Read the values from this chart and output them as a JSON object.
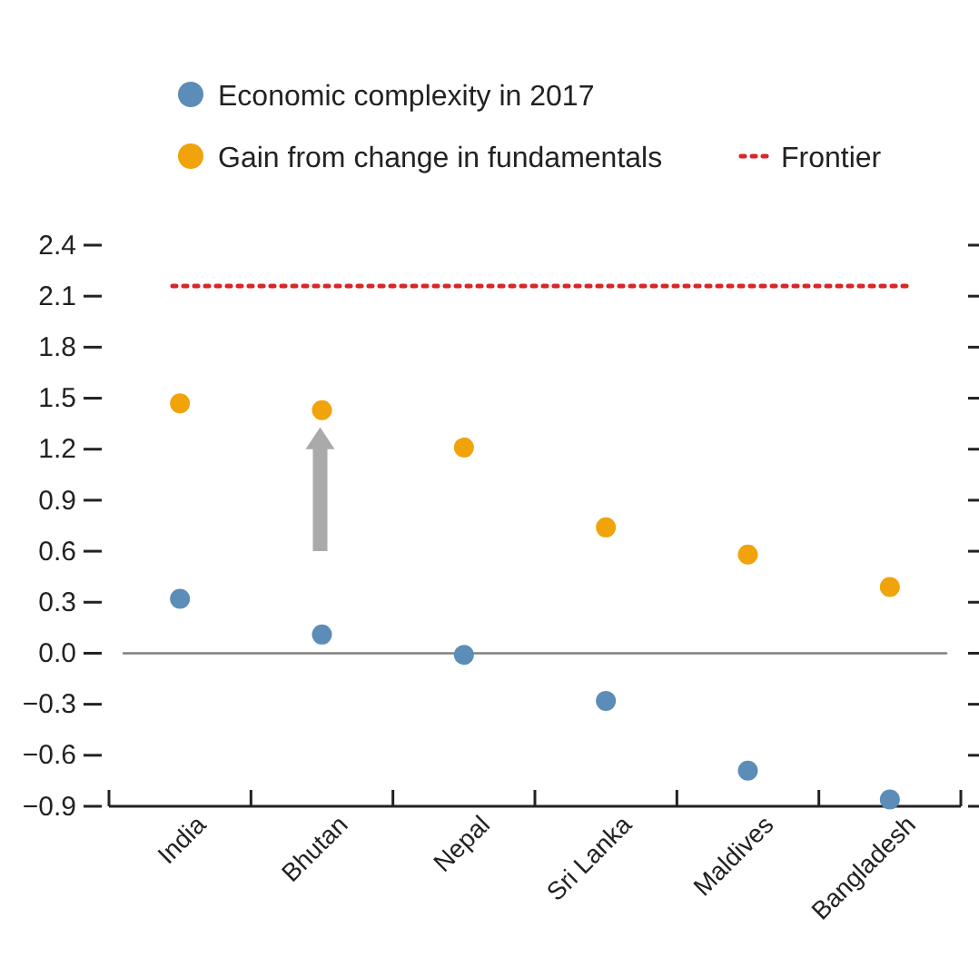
{
  "chart_data": {
    "type": "scatter",
    "categories": [
      "India",
      "Bhutan",
      "Nepal",
      "Sri Lanka",
      "Maldives",
      "Bangladesh"
    ],
    "series": [
      {
        "name": "Economic complexity in 2017",
        "color": "#5b8db8",
        "values": [
          0.32,
          0.11,
          -0.01,
          -0.28,
          -0.69,
          -0.86
        ]
      },
      {
        "name": "Gain from change in fundamentals",
        "color": "#f0a30a",
        "values": [
          1.47,
          1.43,
          1.21,
          0.74,
          0.58,
          0.39
        ]
      }
    ],
    "ylim": [
      -0.9,
      2.4
    ],
    "yticks": [
      {
        "value": -0.9,
        "label": "−0.9"
      },
      {
        "value": -0.6,
        "label": "−0.6"
      },
      {
        "value": -0.3,
        "label": "−0.3"
      },
      {
        "value": 0,
        "label": "0.0"
      },
      {
        "value": 0.3,
        "label": "0.3"
      },
      {
        "value": 0.6,
        "label": "0.6"
      },
      {
        "value": 0.9,
        "label": "0.9"
      },
      {
        "value": 1.2,
        "label": "1.2"
      },
      {
        "value": 1.5,
        "label": "1.5"
      },
      {
        "value": 1.8,
        "label": "1.8"
      },
      {
        "value": 2.1,
        "label": "2.1"
      },
      {
        "value": 2.4,
        "label": "2.4"
      }
    ],
    "ref_lines": [
      {
        "axis": "y",
        "value": 2.16,
        "label": "Frontier",
        "color": "#d9262a",
        "line_style": "dotted"
      },
      {
        "axis": "y",
        "value": 0,
        "label": null,
        "color": "#808080",
        "line_style": "solid"
      }
    ],
    "marker": "circle",
    "grid": false,
    "legend": "top"
  }
}
